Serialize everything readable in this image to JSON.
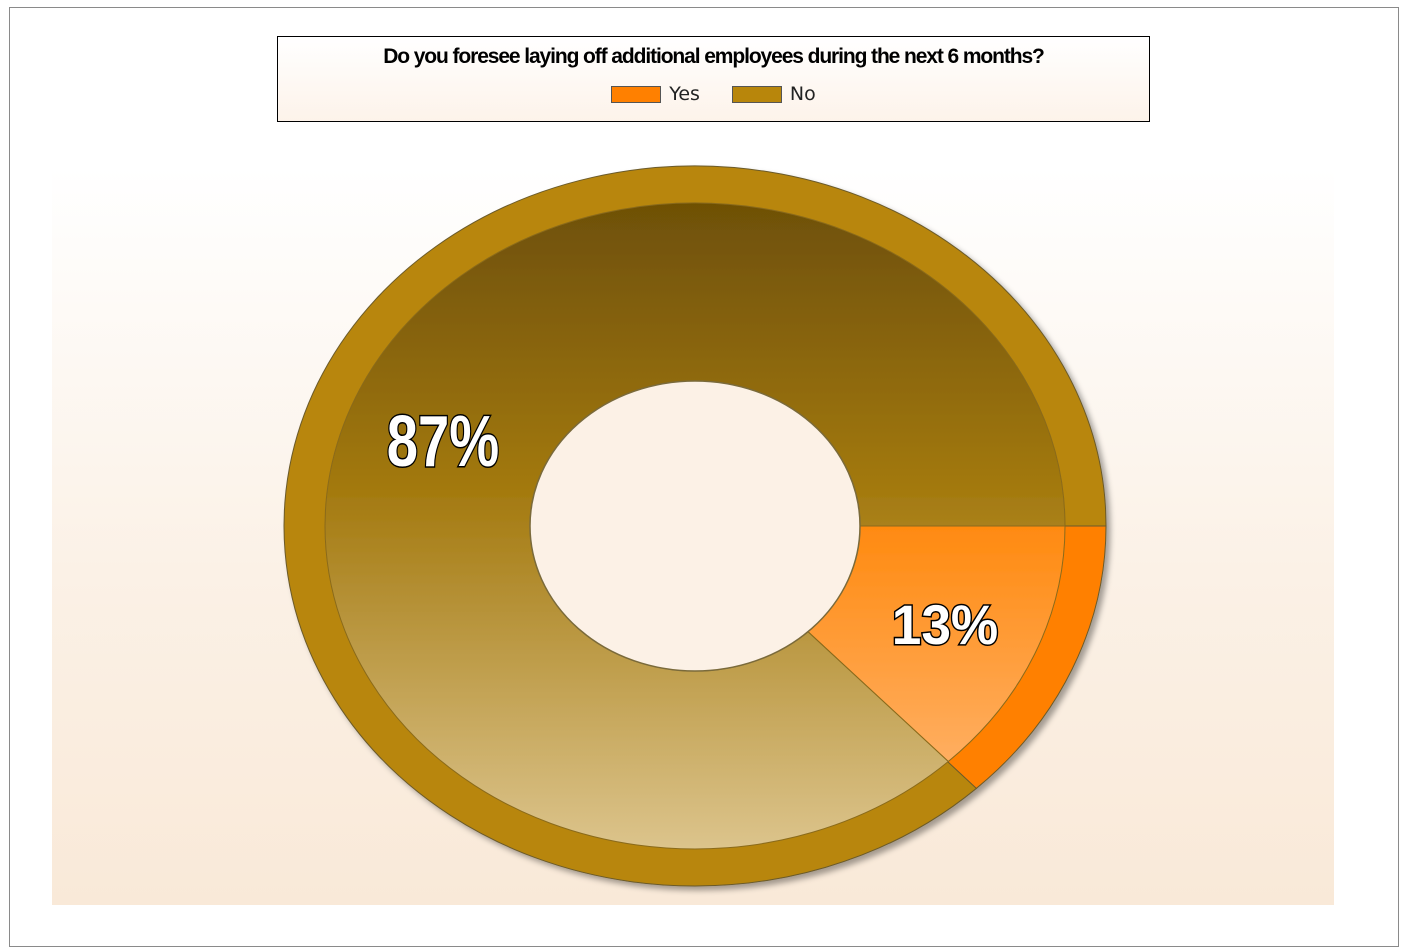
{
  "chart_data": {
    "type": "pie",
    "variant": "doughnut",
    "title": "Do you foresee laying off additional employees during the next 6 months?",
    "legend_position": "top",
    "categories": [
      "Yes",
      "No"
    ],
    "values": [
      13,
      87
    ],
    "labels": [
      "13%",
      "87%"
    ],
    "colors": [
      "#ff8000",
      "#b8860b"
    ],
    "series": [
      {
        "values": [
          13,
          87
        ]
      }
    ]
  },
  "legend": {
    "title": "Do you foresee laying off additional employees during the next 6 months?",
    "items": [
      {
        "label": "Yes",
        "color": "#ff8000"
      },
      {
        "label": "No",
        "color": "#b8860b"
      }
    ]
  }
}
